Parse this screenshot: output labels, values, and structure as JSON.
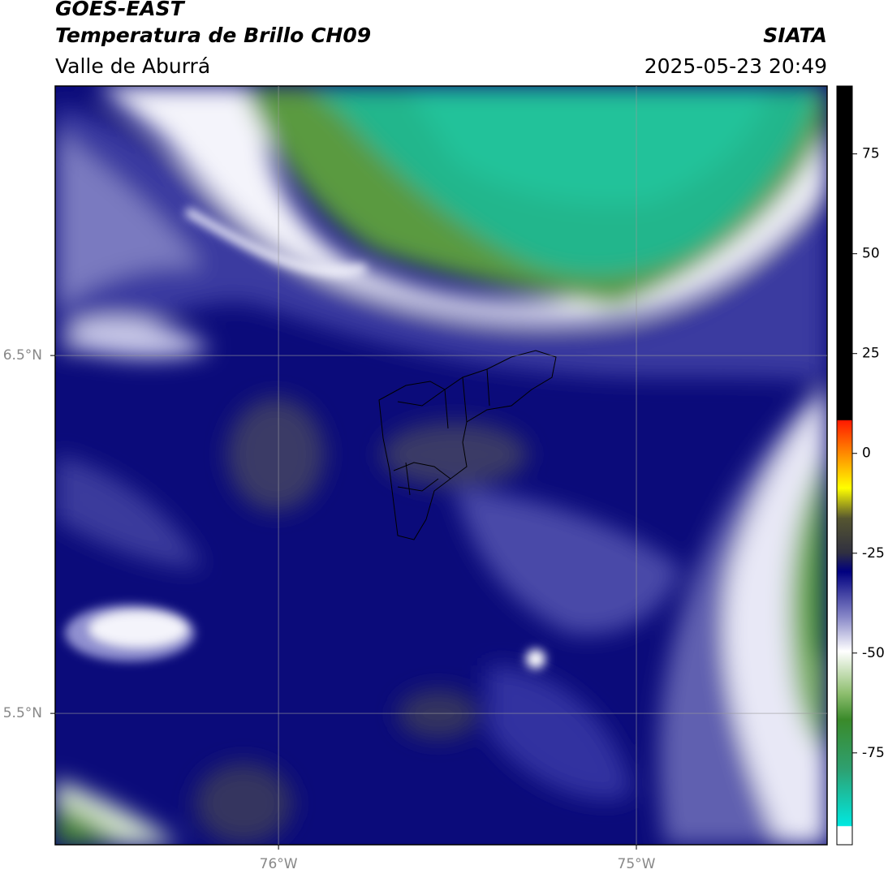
{
  "header": {
    "title": "GOES-EAST",
    "subtitle": "Temperatura de Brillo CH09",
    "region": "Valle de Aburrá",
    "source": "SIATA",
    "timestamp": "2025-05-23 20:49"
  },
  "map": {
    "xlim": [
      -76.624,
      -74.467
    ],
    "ylim": [
      5.133,
      7.253
    ],
    "xticks": [
      {
        "value": -76,
        "label": "76°W"
      },
      {
        "value": -75,
        "label": "75°W"
      }
    ],
    "yticks": [
      {
        "value": 6.5,
        "label": "6.5°N"
      },
      {
        "value": 5.5,
        "label": "5.5°N"
      }
    ]
  },
  "colorbar": {
    "lim": [
      -98,
      92
    ],
    "ticks": [
      -75,
      -50,
      -25,
      0,
      25,
      50,
      75
    ]
  }
}
